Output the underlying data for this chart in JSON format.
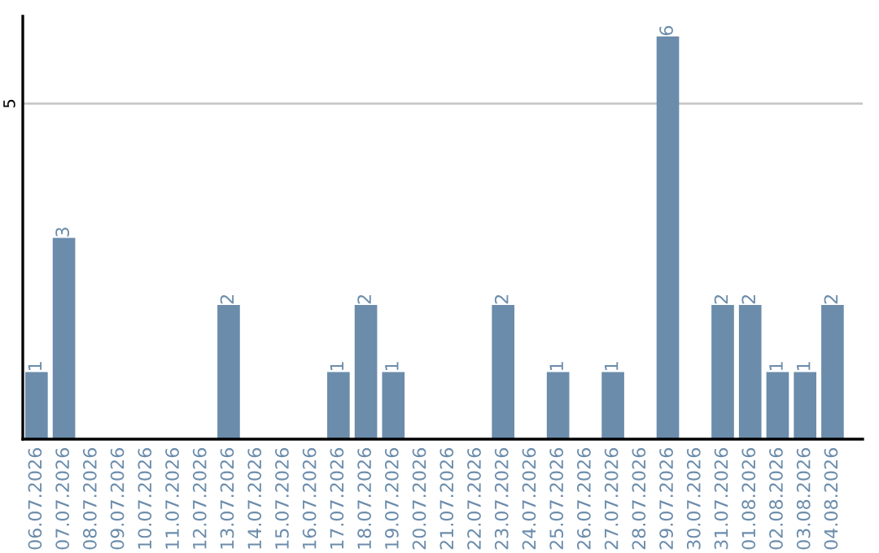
{
  "chart_data": {
    "type": "bar",
    "categories": [
      "06.07.2026",
      "07.07.2026",
      "08.07.2026",
      "09.07.2026",
      "10.07.2026",
      "11.07.2026",
      "12.07.2026",
      "13.07.2026",
      "14.07.2026",
      "15.07.2026",
      "16.07.2026",
      "17.07.2026",
      "18.07.2026",
      "19.07.2026",
      "20.07.2026",
      "21.07.2026",
      "22.07.2026",
      "23.07.2026",
      "24.07.2026",
      "25.07.2026",
      "26.07.2026",
      "27.07.2026",
      "28.07.2026",
      "29.07.2026",
      "30.07.2026",
      "31.07.2026",
      "01.08.2026",
      "02.08.2026",
      "03.08.2026",
      "04.08.2026"
    ],
    "values": [
      1,
      3,
      0,
      0,
      0,
      0,
      0,
      2,
      0,
      0,
      0,
      1,
      2,
      1,
      0,
      0,
      0,
      2,
      0,
      1,
      0,
      1,
      0,
      6,
      0,
      2,
      2,
      1,
      1,
      2
    ],
    "value_labels": [
      "1",
      "3",
      null,
      null,
      null,
      null,
      null,
      "2",
      null,
      null,
      null,
      "1",
      "2",
      "1",
      null,
      null,
      null,
      "2",
      null,
      "1",
      null,
      "1",
      null,
      "6",
      null,
      "2",
      "2",
      "1",
      "1",
      "2"
    ],
    "color": "#6b8cab",
    "ylim": [
      0,
      6.3
    ],
    "yticks": [
      5
    ],
    "grid": "y"
  }
}
